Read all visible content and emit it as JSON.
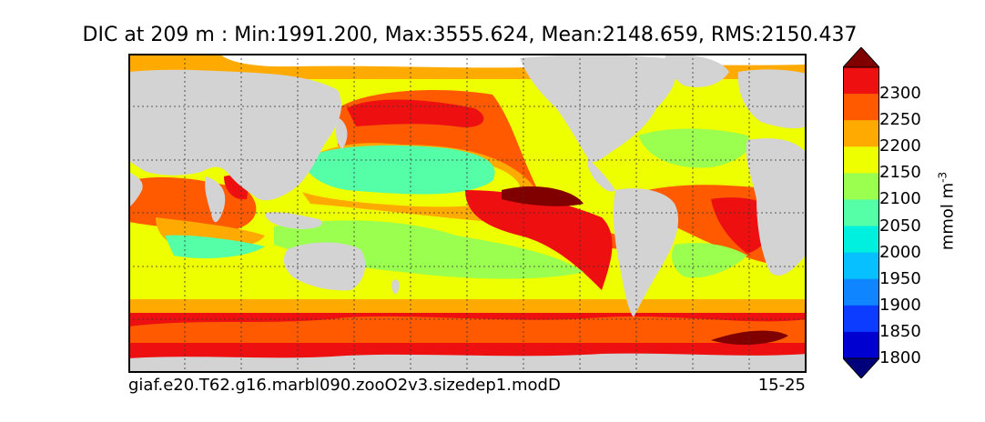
{
  "title": "DIC at 209 m : Min:1991.200, Max:3555.624, Mean:2148.659, RMS:2150.437",
  "case_name": "giaf.e20.T62.g16.marbl090.zooO2v3.sizedep1.modD",
  "years": "15-25",
  "colorbar": {
    "unit_label": "mmol m",
    "unit_exponent": "-3",
    "ticks": [
      "2300",
      "2250",
      "2200",
      "2150",
      "2100",
      "2050",
      "2000",
      "1950",
      "1900",
      "1850",
      "1800"
    ],
    "levels": [
      1775,
      1800,
      1850,
      1900,
      1950,
      2000,
      2050,
      2100,
      2150,
      2200,
      2250,
      2300
    ],
    "colors": [
      "#00007a",
      "#0000d0",
      "#0b3cff",
      "#0f86ff",
      "#07c0ff",
      "#00f0e0",
      "#55ffa8",
      "#9bff50",
      "#eeff00",
      "#ffaa00",
      "#ff5a00",
      "#ee1010",
      "#800000"
    ],
    "extend": "both"
  },
  "map": {
    "land_color": "#d3d3d3",
    "sea_ice_color": "#ffffff",
    "gridlines": "dashed"
  }
}
